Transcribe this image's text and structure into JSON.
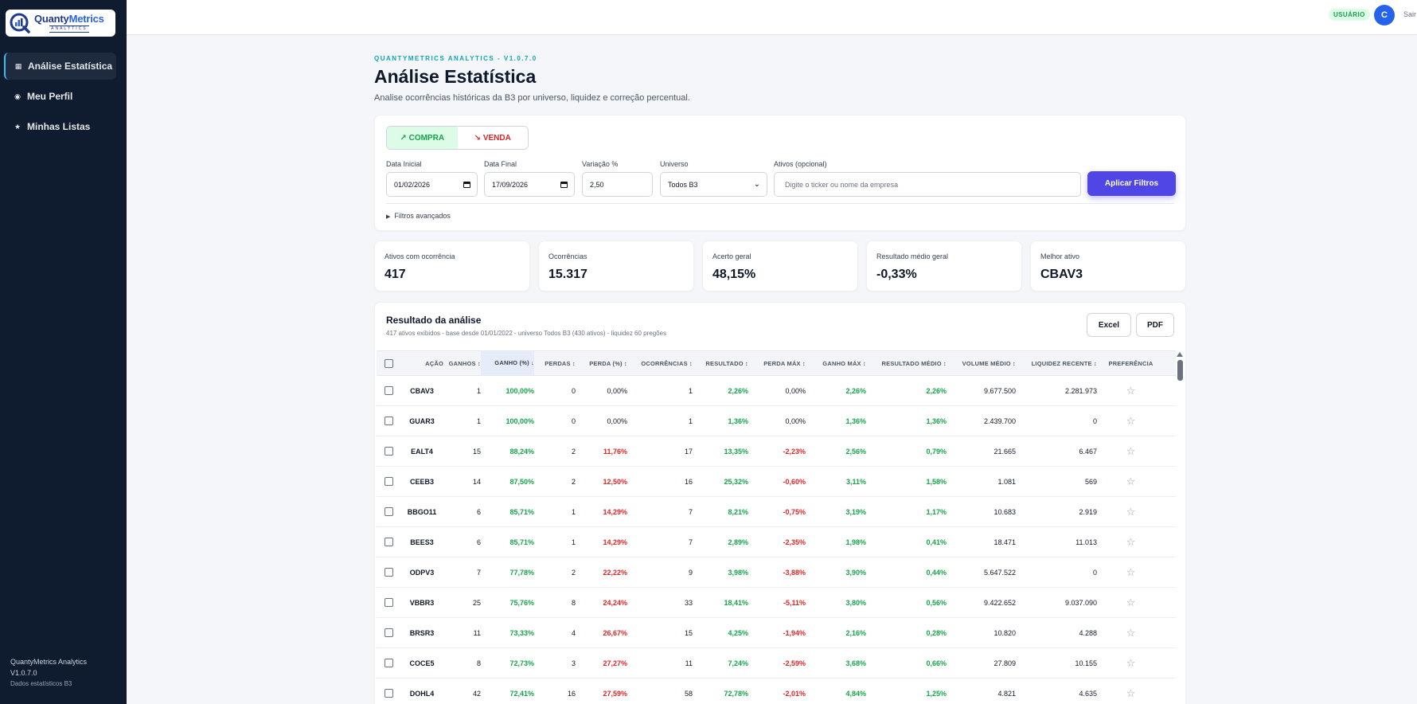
{
  "brand": {
    "name_a": "Quanty",
    "name_b": "Metrics",
    "sub": "ANALYTICS"
  },
  "sidebar": {
    "items": [
      {
        "label": "Análise Estatística",
        "icon": "grid-icon",
        "glyph": "▦"
      },
      {
        "label": "Meu Perfil",
        "icon": "profile-icon",
        "glyph": "◉"
      },
      {
        "label": "Minhas Listas",
        "icon": "star-icon",
        "glyph": "★"
      }
    ],
    "footer": {
      "line1": "QuantyMetrics Analytics",
      "line2": "V1.0.7.0",
      "line3": "Dados estatísticos B3"
    }
  },
  "topbar": {
    "role": "USUÁRIO",
    "avatar": "C",
    "logout": "Sair"
  },
  "header": {
    "overline": "QUANTYMETRICS ANALYTICS - V1.0.7.0",
    "title": "Análise Estatística",
    "subtitle": "Analise ocorrências históricas da B3 por universo, liquidez e correção percentual."
  },
  "filters": {
    "buy": "↗ COMPRA",
    "sell": "↘ VENDA",
    "start_label": "Data Inicial",
    "start_value": "01/02/2026",
    "end_label": "Data Final",
    "end_value": "17/09/2026",
    "var_label": "Variação %",
    "var_value": "2,50",
    "universe_label": "Universo",
    "universe_value": "Todos B3",
    "assets_label": "Ativos (opcional)",
    "assets_placeholder": "Digite o ticker ou nome da empresa",
    "apply": "Aplicar Filtros",
    "advanced": "Filtros avançados"
  },
  "stats": [
    {
      "label": "Ativos com ocorrência",
      "value": "417"
    },
    {
      "label": "Ocorrências",
      "value": "15.317"
    },
    {
      "label": "Acerto geral",
      "value": "48,15%"
    },
    {
      "label": "Resultado médio geral",
      "value": "-0,33%"
    },
    {
      "label": "Melhor ativo",
      "value": "CBAV3"
    }
  ],
  "results": {
    "title": "Resultado da análise",
    "subtitle": "417 ativos exibidos - base desde 01/01/2022 - universo Todos B3 (430 ativos) - liquidez 60 pregões",
    "excel": "Excel",
    "pdf": "PDF",
    "columns": [
      "AÇÃO",
      "GANHOS ↕",
      "GANHO (%) ↓",
      "PERDAS ↕",
      "PERDA (%) ↕",
      "OCORRÊNCIAS ↕",
      "RESULTADO ↕",
      "PERDA MÁX ↕",
      "GANHO MÁX ↕",
      "RESULTADO MÉDIO ↕",
      "VOLUME MÉDIO ↕",
      "LIQUIDEZ RECENTE ↕",
      "PREFERÊNCIA"
    ],
    "rows": [
      [
        "CBAV3",
        "1",
        "100,00%",
        "0",
        "0,00%",
        "1",
        "2,26%",
        "0,00%",
        "2,26%",
        "2,26%",
        "9.677.500",
        "2.281.973"
      ],
      [
        "GUAR3",
        "1",
        "100,00%",
        "0",
        "0,00%",
        "1",
        "1,36%",
        "0,00%",
        "1,36%",
        "1,36%",
        "2.439.700",
        "0"
      ],
      [
        "EALT4",
        "15",
        "88,24%",
        "2",
        "11,76%",
        "17",
        "13,35%",
        "-2,23%",
        "2,56%",
        "0,79%",
        "21.665",
        "6.467"
      ],
      [
        "CEEB3",
        "14",
        "87,50%",
        "2",
        "12,50%",
        "16",
        "25,32%",
        "-0,60%",
        "3,11%",
        "1,58%",
        "1.081",
        "569"
      ],
      [
        "BBGO11",
        "6",
        "85,71%",
        "1",
        "14,29%",
        "7",
        "8,21%",
        "-0,75%",
        "3,19%",
        "1,17%",
        "10.683",
        "2.919"
      ],
      [
        "BEES3",
        "6",
        "85,71%",
        "1",
        "14,29%",
        "7",
        "2,89%",
        "-2,35%",
        "1,98%",
        "0,41%",
        "18.471",
        "11.013"
      ],
      [
        "ODPV3",
        "7",
        "77,78%",
        "2",
        "22,22%",
        "9",
        "3,98%",
        "-3,88%",
        "3,90%",
        "0,44%",
        "5.647.522",
        "0"
      ],
      [
        "VBBR3",
        "25",
        "75,76%",
        "8",
        "24,24%",
        "33",
        "18,41%",
        "-5,11%",
        "3,80%",
        "0,56%",
        "9.422.652",
        "9.037.090"
      ],
      [
        "BRSR3",
        "11",
        "73,33%",
        "4",
        "26,67%",
        "15",
        "4,25%",
        "-1,94%",
        "2,16%",
        "0,28%",
        "10.820",
        "4.288"
      ],
      [
        "COCE5",
        "8",
        "72,73%",
        "3",
        "27,27%",
        "11",
        "7,24%",
        "-2,59%",
        "3,68%",
        "0,66%",
        "27.809",
        "10.155"
      ],
      [
        "DOHL4",
        "42",
        "72,41%",
        "16",
        "27,59%",
        "58",
        "72,78%",
        "-2,01%",
        "4,84%",
        "1,25%",
        "4.821",
        "4.635"
      ]
    ]
  },
  "colors": {
    "sidebar": "#0f1b2e",
    "accent": "#4f46e5",
    "positive": "#16a34a",
    "negative": "#dc2626"
  }
}
